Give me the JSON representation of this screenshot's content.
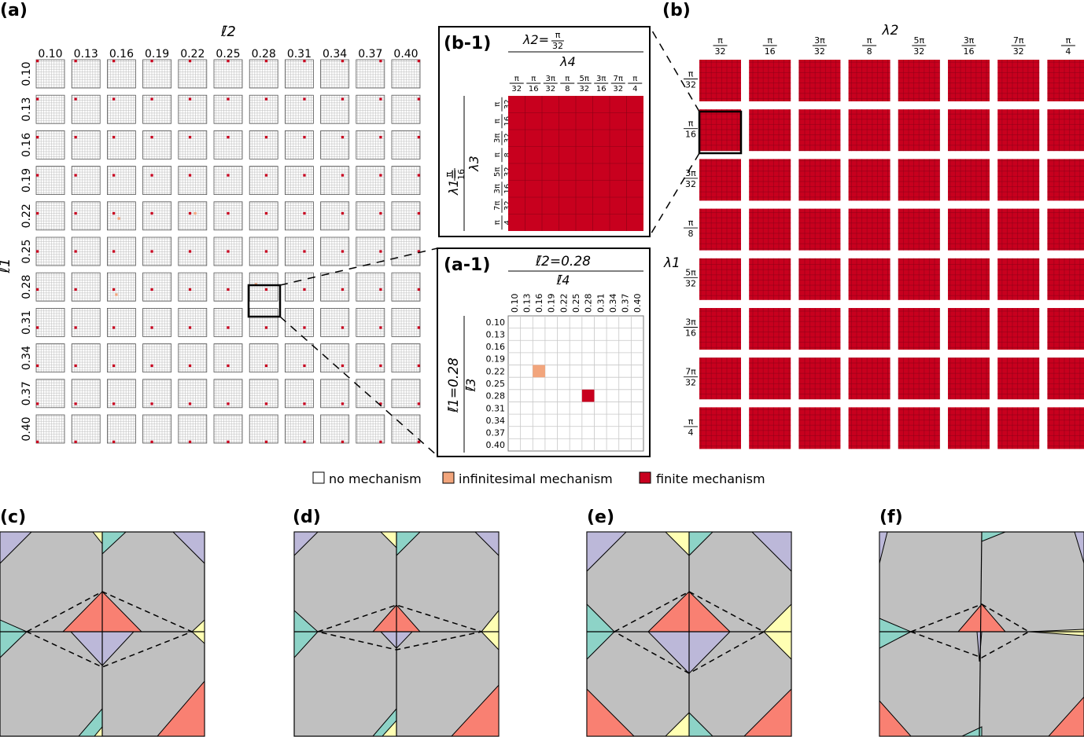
{
  "figure": {
    "panel_labels": {
      "a": "(a)",
      "b": "(b)",
      "b1": "(b-1)",
      "a1": "(a-1)",
      "c": "(c)",
      "d": "(d)",
      "e": "(e)",
      "f": "(f)"
    },
    "legend": [
      {
        "label": "no mechanism",
        "color": "#ffffff"
      },
      {
        "label": "infinitesimal mechanism",
        "color": "#f2a57c"
      },
      {
        "label": "finite mechanism",
        "color": "#c8001e"
      }
    ],
    "colors": {
      "finite": "#c8001e",
      "infinitesimal": "#f2a57c",
      "grid_line": "#b0b0b0",
      "polygon_gray": "#c0c0c0",
      "tri_red": "#f98072",
      "tri_lavender": "#bcb8d9",
      "tri_teal": "#8dd3c7",
      "tri_yellow": "#ffffb3"
    }
  },
  "chart_data": [
    {
      "panel": "(a)",
      "type": "heatmap",
      "xlabel": "ℓ̄2",
      "ylabel": "ℓ̄1",
      "x_ticks": [
        "0.10",
        "0.13",
        "0.16",
        "0.19",
        "0.22",
        "0.25",
        "0.28",
        "0.31",
        "0.34",
        "0.37",
        "0.40"
      ],
      "y_ticks": [
        "0.10",
        "0.13",
        "0.16",
        "0.19",
        "0.22",
        "0.25",
        "0.28",
        "0.31",
        "0.34",
        "0.37",
        "0.40"
      ],
      "sub_grid": 11,
      "finite_cells_note": "one finite-mechanism cell per subplot, at (ℓ̄3 = ℓ̄1, ℓ̄4 = ℓ̄2)",
      "infinitesimal_subplots": [
        {
          "l1": "0.22",
          "l2": "0.16",
          "l3": "0.28",
          "l4": "0.22"
        },
        {
          "l1": "0.22",
          "l2": "0.22",
          "l3": "0.22",
          "l4": "0.28"
        },
        {
          "l1": "0.28",
          "l2": "0.16",
          "l3": "0.34",
          "l4": "0.19"
        },
        {
          "l1": "0.28",
          "l2": "0.28",
          "l3": "0.22",
          "l4": "0.16"
        }
      ]
    },
    {
      "panel": "(a-1)",
      "type": "heatmap",
      "title": "ℓ̄2=0.28",
      "xlabel": "ℓ̄4",
      "ylabel": "ℓ̄3",
      "row_title": "ℓ̄1=0.28",
      "x_ticks": [
        "0.10",
        "0.13",
        "0.16",
        "0.19",
        "0.22",
        "0.25",
        "0.28",
        "0.31",
        "0.34",
        "0.37",
        "0.40"
      ],
      "y_ticks": [
        "0.10",
        "0.13",
        "0.16",
        "0.19",
        "0.22",
        "0.25",
        "0.28",
        "0.31",
        "0.34",
        "0.37",
        "0.40"
      ],
      "cells": [
        {
          "l3": "0.22",
          "l4": "0.16",
          "state": "infinitesimal mechanism"
        },
        {
          "l3": "0.28",
          "l4": "0.28",
          "state": "finite mechanism"
        }
      ]
    },
    {
      "panel": "(b)",
      "type": "heatmap",
      "xlabel": "λ2",
      "ylabel": "λ1",
      "ticks": [
        {
          "num": "π",
          "den": "32"
        },
        {
          "num": "π",
          "den": "16"
        },
        {
          "num": "3π",
          "den": "32"
        },
        {
          "num": "π",
          "den": "8"
        },
        {
          "num": "5π",
          "den": "32"
        },
        {
          "num": "3π",
          "den": "16"
        },
        {
          "num": "7π",
          "den": "32"
        },
        {
          "num": "π",
          "den": "4"
        }
      ],
      "sub_grid": 8,
      "state": "finite mechanism for all cells"
    },
    {
      "panel": "(b-1)",
      "type": "heatmap",
      "title_lhs": "λ2=",
      "title_frac": {
        "num": "π",
        "den": "32"
      },
      "xlabel": "λ4",
      "ylabel": "λ3",
      "row_title_lhs": "λ1=",
      "row_title_frac": {
        "num": "π",
        "den": "16"
      },
      "state": "finite mechanism for all cells"
    }
  ]
}
